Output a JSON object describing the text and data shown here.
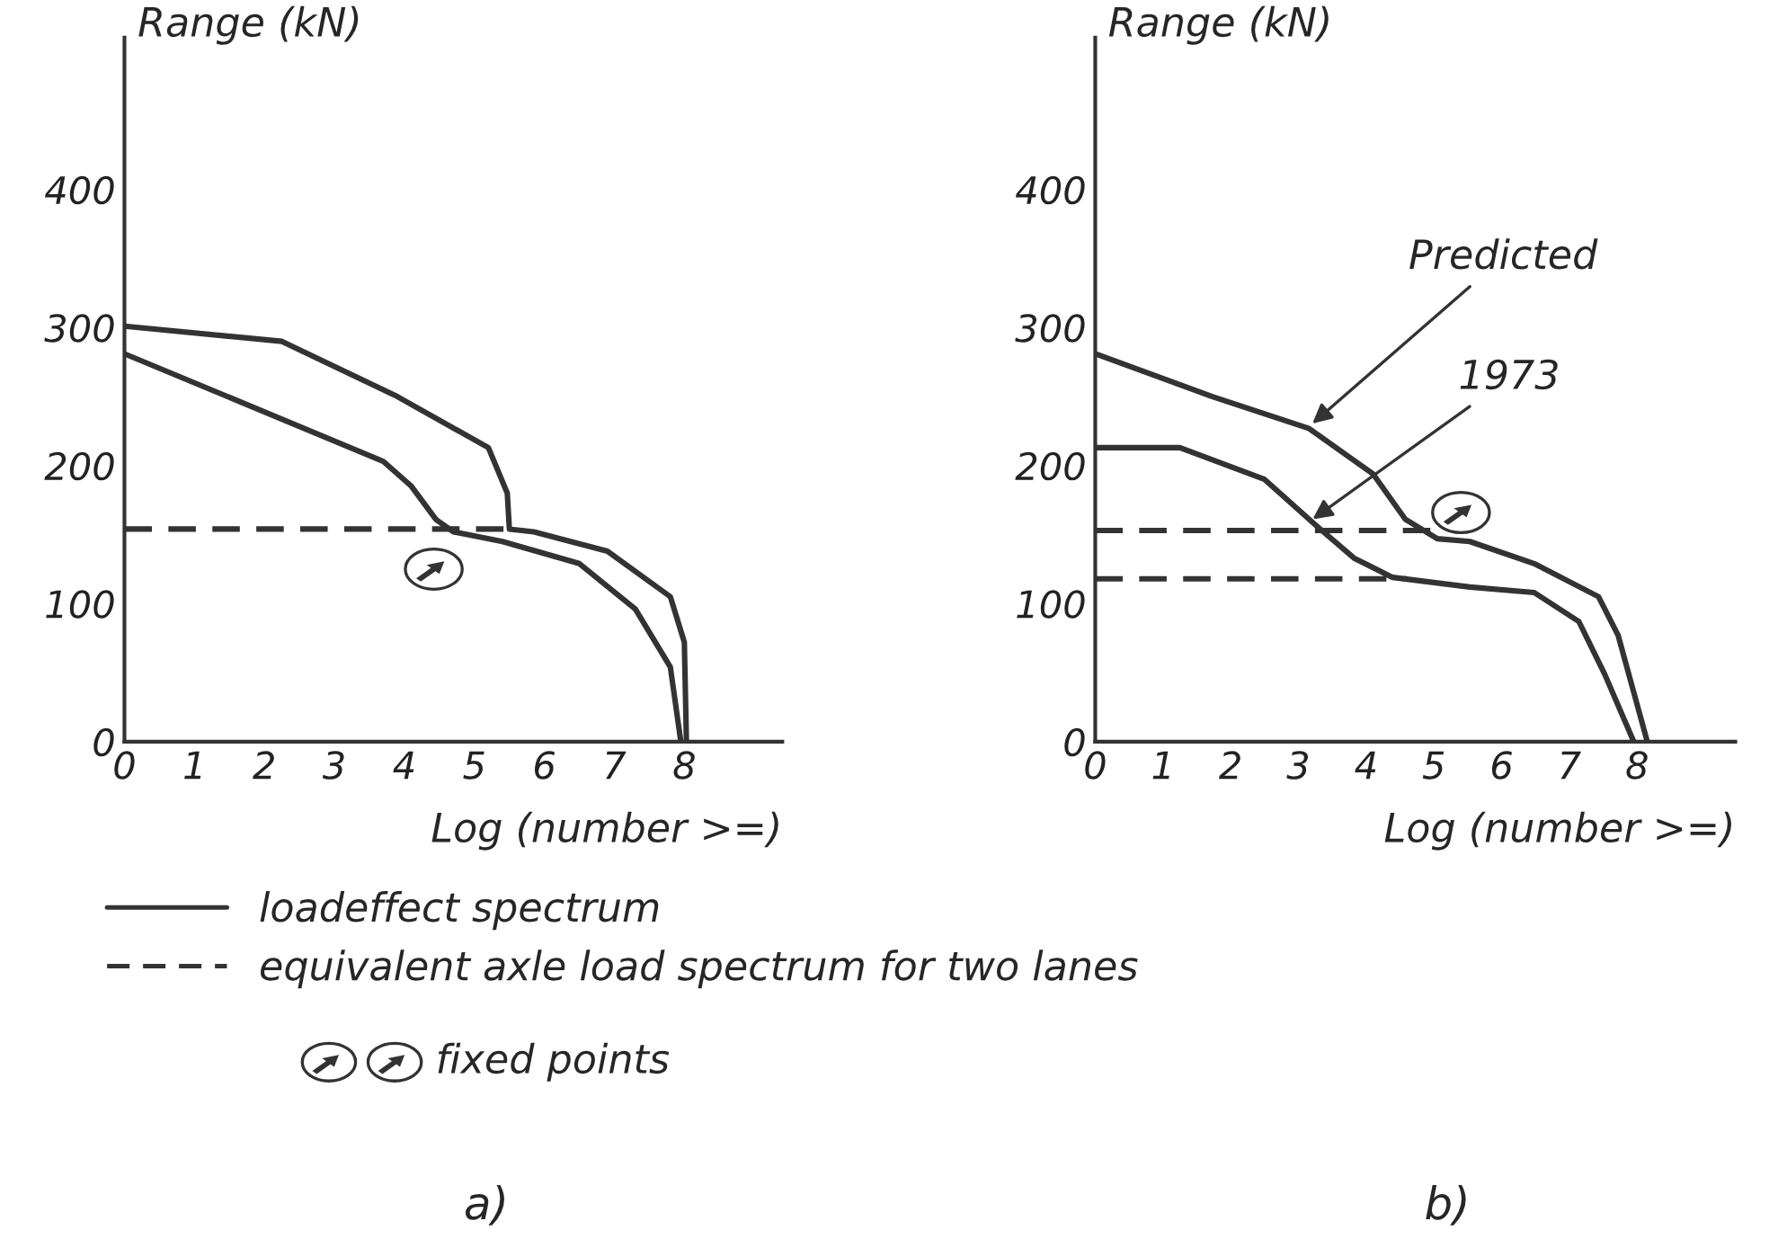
{
  "chart_data": [
    {
      "type": "line",
      "xlabel": "Log (number >=)",
      "ylabel": "Range (kN)",
      "xlim": [
        0,
        9.4
      ],
      "ylim": [
        0,
        510
      ],
      "xticks": [
        0,
        1,
        2,
        3,
        4,
        5,
        6,
        7,
        8
      ],
      "yticks": [
        0,
        100,
        200,
        300,
        400
      ],
      "grid": false,
      "legend": "bottom",
      "series": [
        {
          "name": "loadeffect spectrum",
          "color": "#333333",
          "line_style": "solid",
          "x": [
            0,
            2.25,
            3.9,
            5.2,
            5.47,
            5.5,
            5.85,
            6.9,
            7.8,
            8.0,
            8.03
          ],
          "values": [
            301,
            290,
            250,
            213,
            180,
            154,
            152,
            138,
            105,
            72,
            0
          ]
        },
        {
          "color": "#333333",
          "line_style": "solid",
          "x": [
            0,
            1.9,
            3.7,
            4.1,
            4.45,
            4.7,
            5.4,
            6.5,
            7.3,
            7.8,
            7.95
          ],
          "values": [
            281,
            241,
            203,
            185,
            161,
            152,
            145,
            129,
            96,
            54,
            0
          ]
        },
        {
          "name": "equivalent axle load spectrum for two lanes",
          "color": "#333333",
          "line_style": "dashed",
          "x": [
            0,
            5.5
          ],
          "values": [
            154,
            154
          ]
        }
      ],
      "annotations": [
        "a)",
        "fixed points"
      ]
    },
    {
      "type": "line",
      "xlabel": "Log (number >=)",
      "ylabel": "Range (kN)",
      "xlim": [
        0,
        9.45
      ],
      "ylim": [
        0,
        510
      ],
      "xticks": [
        0,
        1,
        2,
        3,
        4,
        5,
        6,
        7,
        8
      ],
      "yticks": [
        0,
        100,
        200,
        300,
        400
      ],
      "grid": false,
      "series": [
        {
          "color": "#333333",
          "line_style": "solid",
          "x": [
            0,
            1.73,
            3.15,
            4.1,
            4.58,
            5.05,
            5.53,
            6.48,
            7.43,
            7.72,
            8.15
          ],
          "values": [
            281,
            250,
            227,
            194,
            161,
            147,
            145,
            129,
            105,
            77,
            0
          ]
        },
        {
          "color": "#333333",
          "line_style": "solid",
          "x": [
            0,
            1.25,
            2.5,
            3.25,
            3.82,
            4.39,
            5.53,
            6.48,
            7.14,
            7.52,
            7.95
          ],
          "values": [
            213,
            213,
            190,
            157,
            133,
            119,
            112,
            108,
            87,
            49,
            0
          ]
        },
        {
          "color": "#333333",
          "line_style": "dashed",
          "x": [
            0,
            5.0
          ],
          "values": [
            153,
            153
          ]
        },
        {
          "color": "#333333",
          "line_style": "dashed",
          "x": [
            0,
            4.6
          ],
          "values": [
            118,
            118
          ]
        }
      ],
      "annotations": [
        "b)",
        {
          "text": "Predicted",
          "x": 3.15,
          "y": 228
        },
        {
          "text": "1973",
          "x": 3.15,
          "y": 159
        }
      ]
    }
  ]
}
